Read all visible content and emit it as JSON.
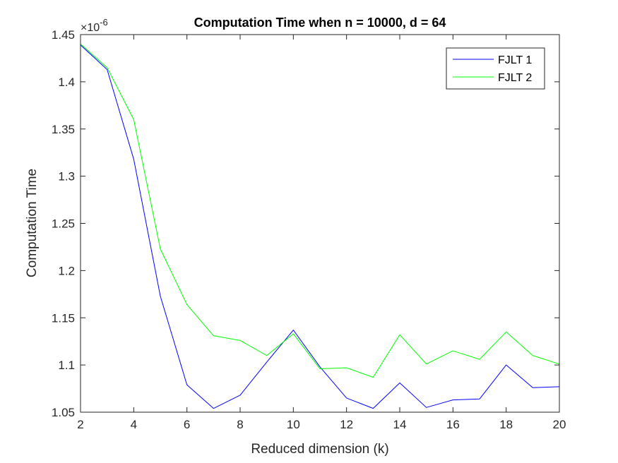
{
  "chart_data": {
    "type": "line",
    "title": "Computation Time when n = 10000, d = 64",
    "xlabel": "Reduced dimension (k)",
    "ylabel": "Computation Time",
    "y_exponent_base": "×10",
    "y_exponent_power": "-6",
    "xlim": [
      2,
      20
    ],
    "ylim": [
      1.05,
      1.45
    ],
    "x_ticks": [
      2,
      4,
      6,
      8,
      10,
      12,
      14,
      16,
      18,
      20
    ],
    "x_tick_labels": [
      "2",
      "4",
      "6",
      "8",
      "10",
      "12",
      "14",
      "16",
      "18",
      "20"
    ],
    "y_ticks": [
      1.05,
      1.1,
      1.15,
      1.2,
      1.25,
      1.3,
      1.35,
      1.4,
      1.45
    ],
    "y_tick_labels": [
      "1.05",
      "1.1",
      "1.15",
      "1.2",
      "1.25",
      "1.3",
      "1.35",
      "1.4",
      "1.45"
    ],
    "grid": false,
    "legend_position": "top-right",
    "x": [
      2,
      3,
      4,
      5,
      6,
      7,
      8,
      9,
      10,
      11,
      12,
      13,
      14,
      15,
      16,
      17,
      18,
      19,
      20
    ],
    "series": [
      {
        "name": "FJLT 1",
        "color": "#0000ff",
        "values": [
          1.439,
          1.413,
          1.318,
          1.173,
          1.079,
          1.054,
          1.068,
          1.103,
          1.137,
          1.098,
          1.065,
          1.054,
          1.081,
          1.055,
          1.063,
          1.064,
          1.1,
          1.076,
          1.077
        ]
      },
      {
        "name": "FJLT 2",
        "color": "#00ff00",
        "values": [
          1.44,
          1.415,
          1.36,
          1.223,
          1.164,
          1.131,
          1.126,
          1.11,
          1.133,
          1.096,
          1.097,
          1.087,
          1.132,
          1.101,
          1.115,
          1.106,
          1.135,
          1.11,
          1.101
        ]
      }
    ]
  }
}
